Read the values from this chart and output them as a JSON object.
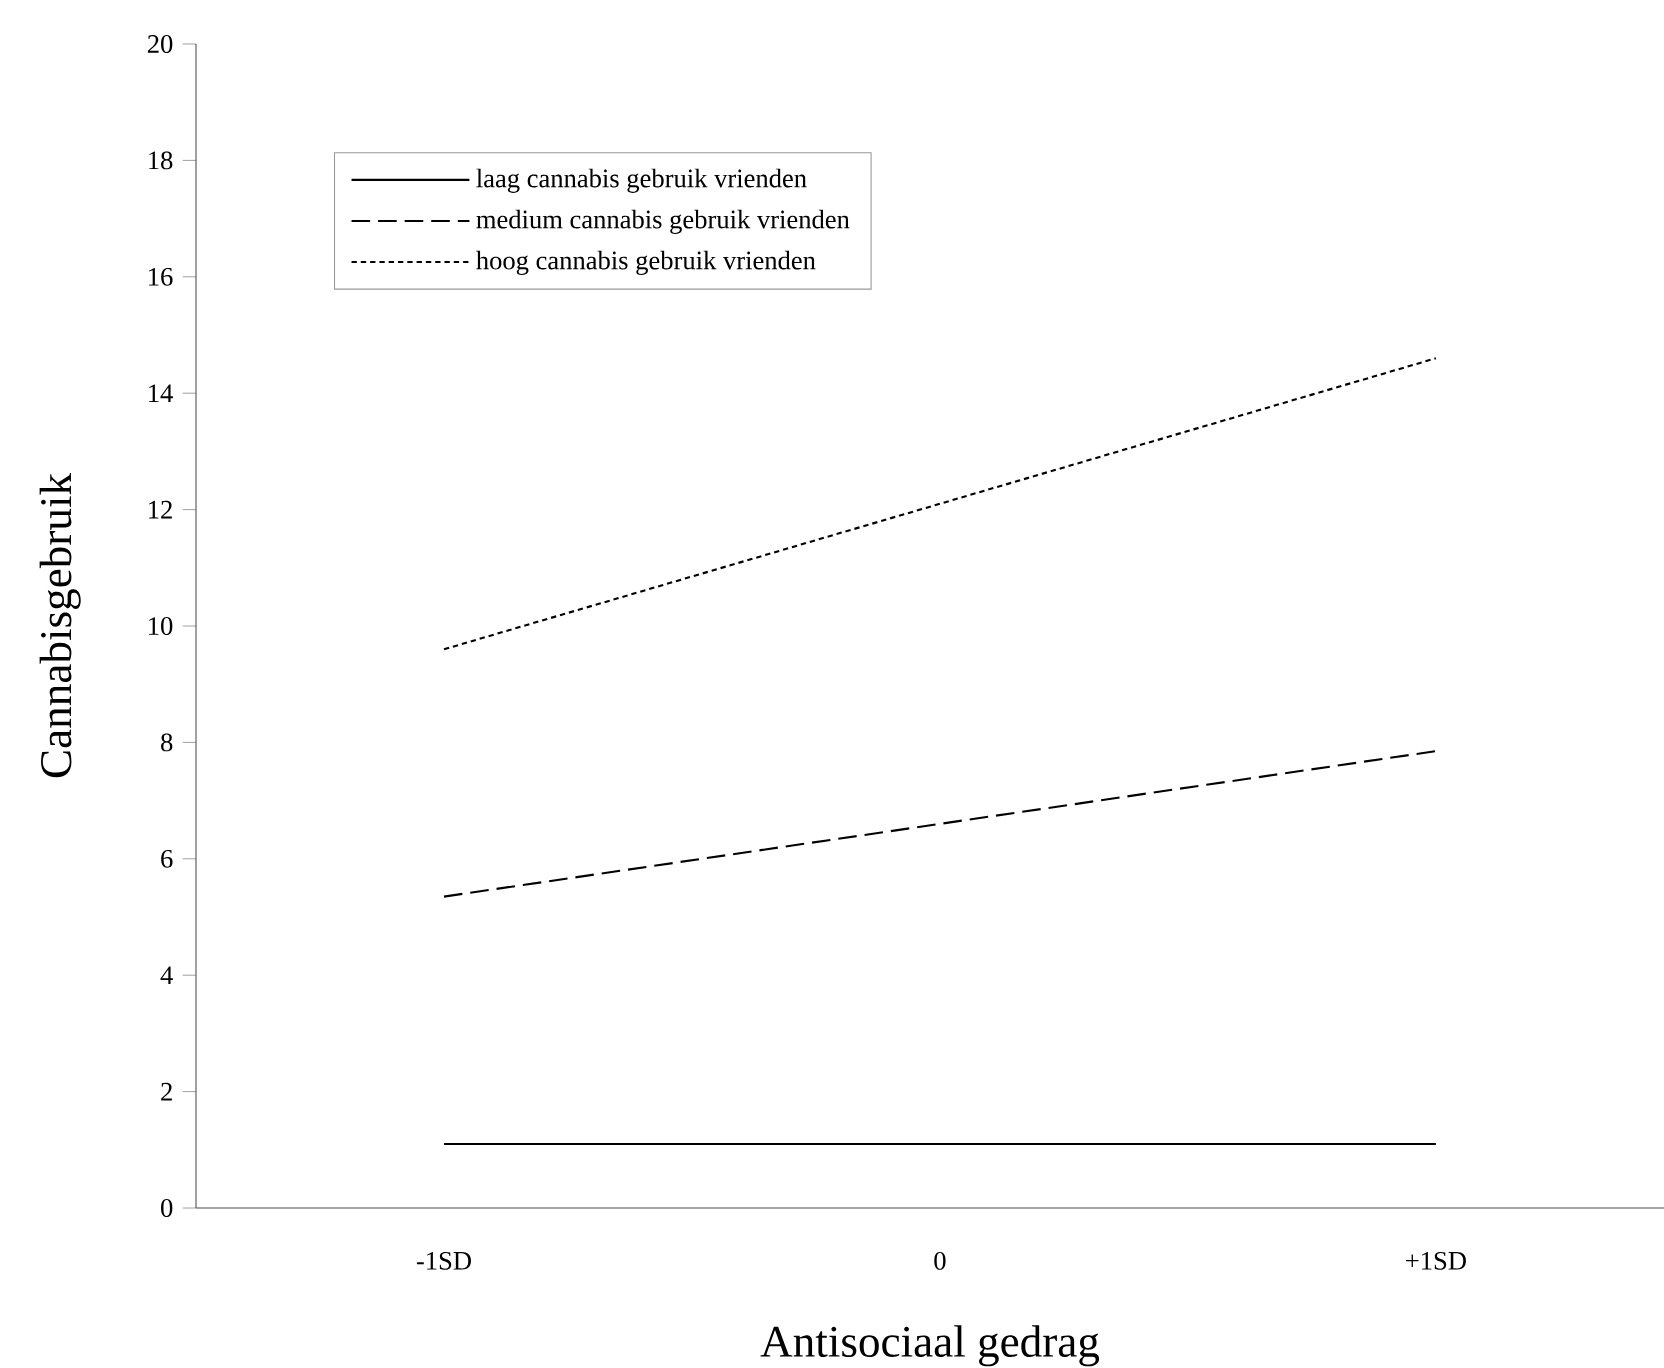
{
  "chart_data": {
    "type": "line",
    "xlabel": "Antisociaal gedrag",
    "ylabel": "Cannabisgebruik",
    "categories": [
      "-1SD",
      "0",
      "+1SD"
    ],
    "series": [
      {
        "name": "laag cannabis gebruik vrienden",
        "color": "#000000",
        "line_style": "solid",
        "values": [
          1.1,
          1.1,
          1.1
        ]
      },
      {
        "name": "medium cannabis gebruik vrienden",
        "color": "#000000",
        "line_style": "dashed",
        "values": [
          5.35,
          6.6,
          7.85
        ]
      },
      {
        "name": "hoog cannabis gebruik vrienden",
        "color": "#000000",
        "line_style": "dotted",
        "values": [
          9.6,
          12.1,
          14.6
        ]
      }
    ],
    "ylim": [
      0,
      20
    ],
    "yticks": [
      0,
      2,
      4,
      6,
      8,
      10,
      12,
      14,
      16,
      18,
      20
    ],
    "grid": false,
    "legend": "top left",
    "marker": "none"
  }
}
